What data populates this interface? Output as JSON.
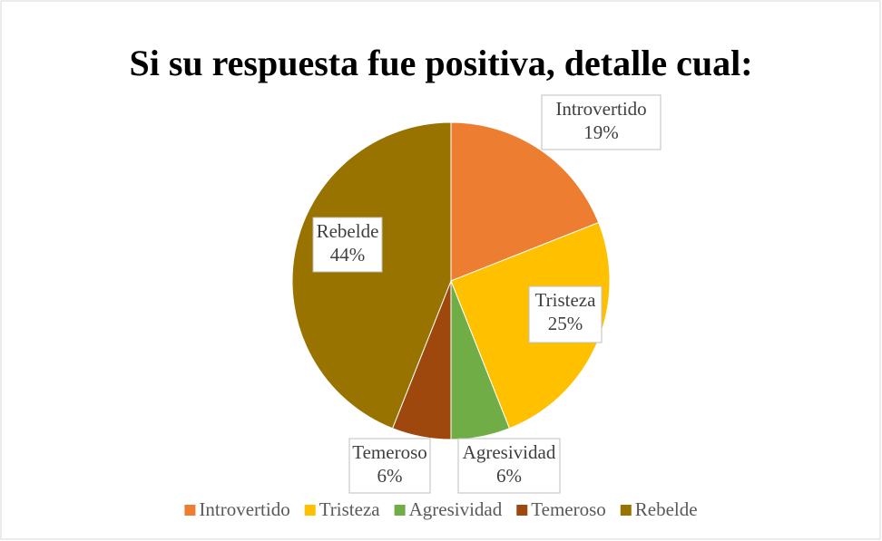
{
  "chart_data": {
    "type": "pie",
    "title": "Si su respuesta fue positiva, detalle cual:",
    "categories": [
      "Introvertido",
      "Tristeza",
      "Agresividad",
      "Temeroso",
      "Rebelde"
    ],
    "values": [
      19,
      25,
      6,
      6,
      44
    ],
    "value_labels": [
      "19%",
      "25%",
      "6%",
      "6%",
      "44%"
    ],
    "colors": [
      "#ed7d31",
      "#ffc000",
      "#70ad47",
      "#9e480e",
      "#997300"
    ],
    "legend": "bottom"
  }
}
